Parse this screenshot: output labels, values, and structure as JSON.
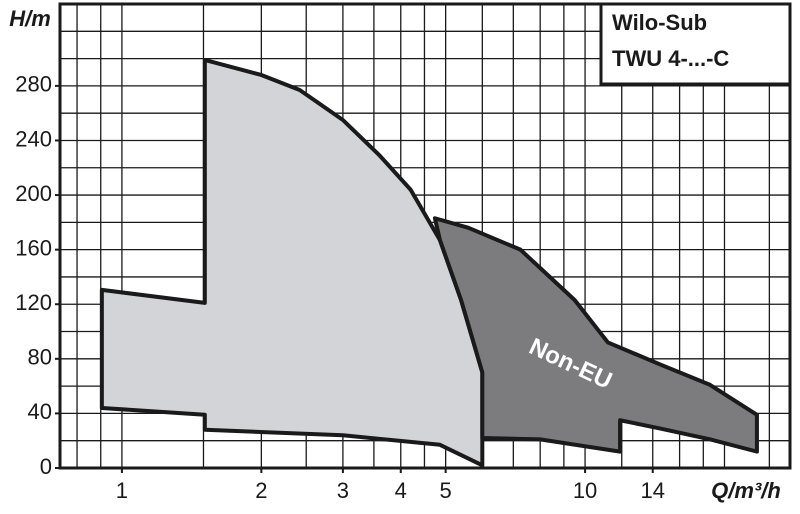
{
  "chart_data": {
    "type": "polygon",
    "title": [
      "Wilo-Sub",
      "TWU 4-...-C"
    ],
    "x_label": "Q/m³/h",
    "y_label": "H/m",
    "x_scale": "log",
    "xlim": [
      0.735,
      27.7
    ],
    "ylim": [
      0,
      340
    ],
    "xticks": [
      1,
      2,
      3,
      4,
      5,
      10,
      14
    ],
    "yticks": [
      0,
      40,
      80,
      120,
      160,
      200,
      240,
      280
    ],
    "xgrid": [
      0.8,
      0.9,
      1,
      1.5,
      2,
      2.5,
      3,
      3.5,
      4,
      4.5,
      5,
      6,
      7,
      8,
      9,
      10,
      12,
      14,
      16,
      18,
      20,
      25
    ],
    "ygrid": [
      20,
      40,
      60,
      80,
      100,
      120,
      140,
      160,
      180,
      200,
      220,
      240,
      260,
      280,
      300,
      320
    ],
    "grid": true,
    "series": [
      {
        "color": "#d3d4d8",
        "x": [
          0.905,
          1.51,
          1.51,
          2,
          2.42,
          3,
          3.6,
          4.2,
          4.86,
          5.4,
          6.0,
          6.0,
          4.86,
          3,
          1.51,
          1.51,
          0.905
        ],
        "values": [
          130.5,
          121,
          299,
          288,
          277,
          255,
          229,
          204,
          167,
          123,
          70,
          2,
          17,
          24,
          28,
          39,
          44
        ]
      },
      {
        "color": "#7c7c7e",
        "x": [
          4.74,
          5.6,
          7.25,
          9.5,
          11.2,
          14.5,
          18.6,
          23.5,
          23.5,
          18.6,
          14.5,
          11.9,
          11.9,
          8,
          6.0,
          6.0,
          5.4,
          4.86
        ],
        "values": [
          183,
          176,
          160,
          123,
          92,
          76,
          61,
          39,
          12,
          21,
          29,
          35,
          12,
          21,
          22,
          70,
          123,
          167
        ]
      }
    ],
    "annotation": "Non-EU"
  }
}
